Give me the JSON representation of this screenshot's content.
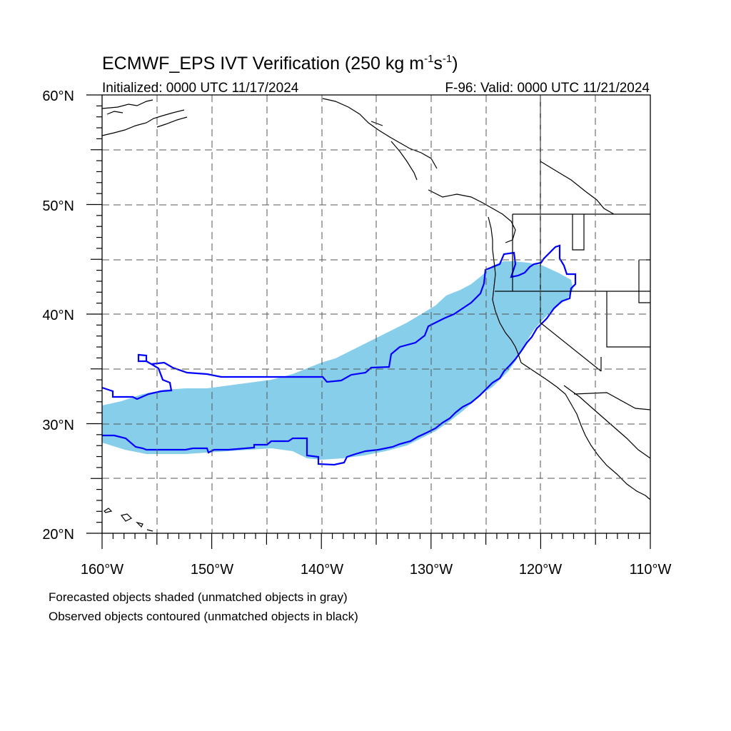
{
  "title": {
    "prefix": "ECMWF_EPS IVT Verification (250 kg m",
    "sup1": "-1",
    "mid": "s",
    "sup2": "-1",
    "suffix": ")"
  },
  "subtitle_left": "Initialized: 0000 UTC 11/17/2024",
  "subtitle_right": "F-96: Valid: 0000 UTC 11/21/2024",
  "lat_labels": [
    "60°N",
    "50°N",
    "40°N",
    "30°N",
    "20°N"
  ],
  "lon_labels": [
    "160°W",
    "150°W",
    "140°W",
    "130°W",
    "120°W",
    "110°W"
  ],
  "footnotes": [
    "Forecasted objects shaded (unmatched objects in gray)",
    "Observed objects contoured (unmatched objects in black)"
  ],
  "map": {
    "lon_range": [
      -160,
      -110
    ],
    "lat_range": [
      20,
      60
    ],
    "gridline_spacing_deg": 5,
    "gridlines": "dashed"
  },
  "colors": {
    "forecast_shading": "#87ceeb",
    "observed_contour": "#0000ff",
    "coastline": "#000000",
    "gridline": "#555555"
  }
}
